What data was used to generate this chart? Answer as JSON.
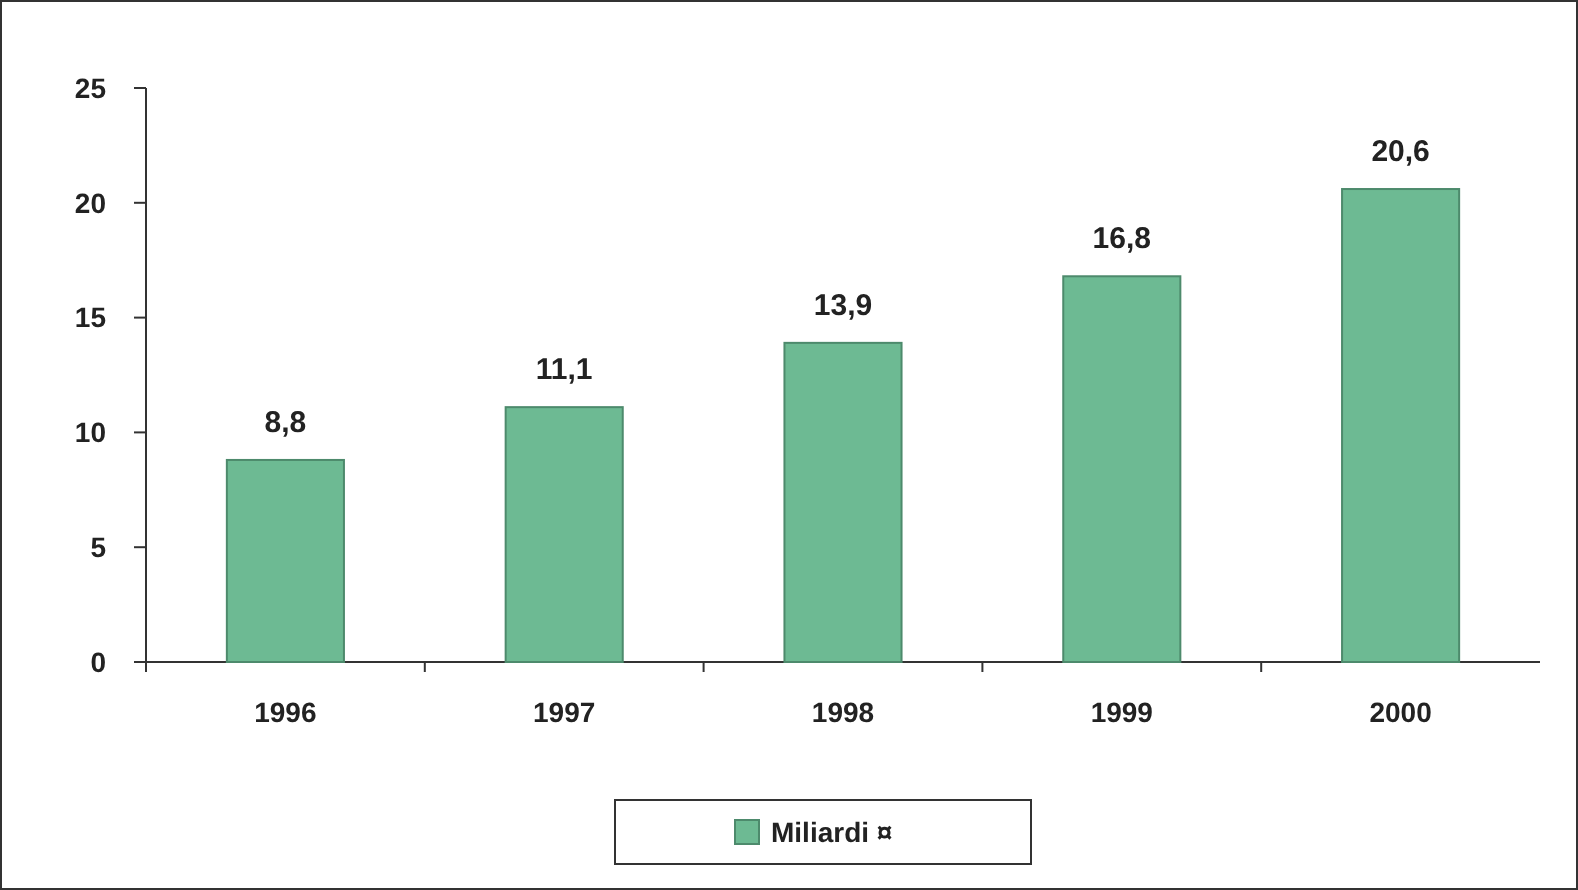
{
  "chart_data": {
    "type": "bar",
    "categories": [
      "1996",
      "1997",
      "1998",
      "1999",
      "2000"
    ],
    "series": [
      {
        "name": "Miliardi ¤",
        "color": "#6dba93",
        "values": [
          8.8,
          11.1,
          13.9,
          16.8,
          20.6
        ],
        "value_labels": [
          "8,8",
          "11,1",
          "13,9",
          "16,8",
          "20,6"
        ]
      }
    ],
    "ylim": [
      0,
      25
    ],
    "yticks": [
      0,
      5,
      10,
      15,
      20,
      25
    ],
    "legend": "bottom",
    "grid": false
  }
}
